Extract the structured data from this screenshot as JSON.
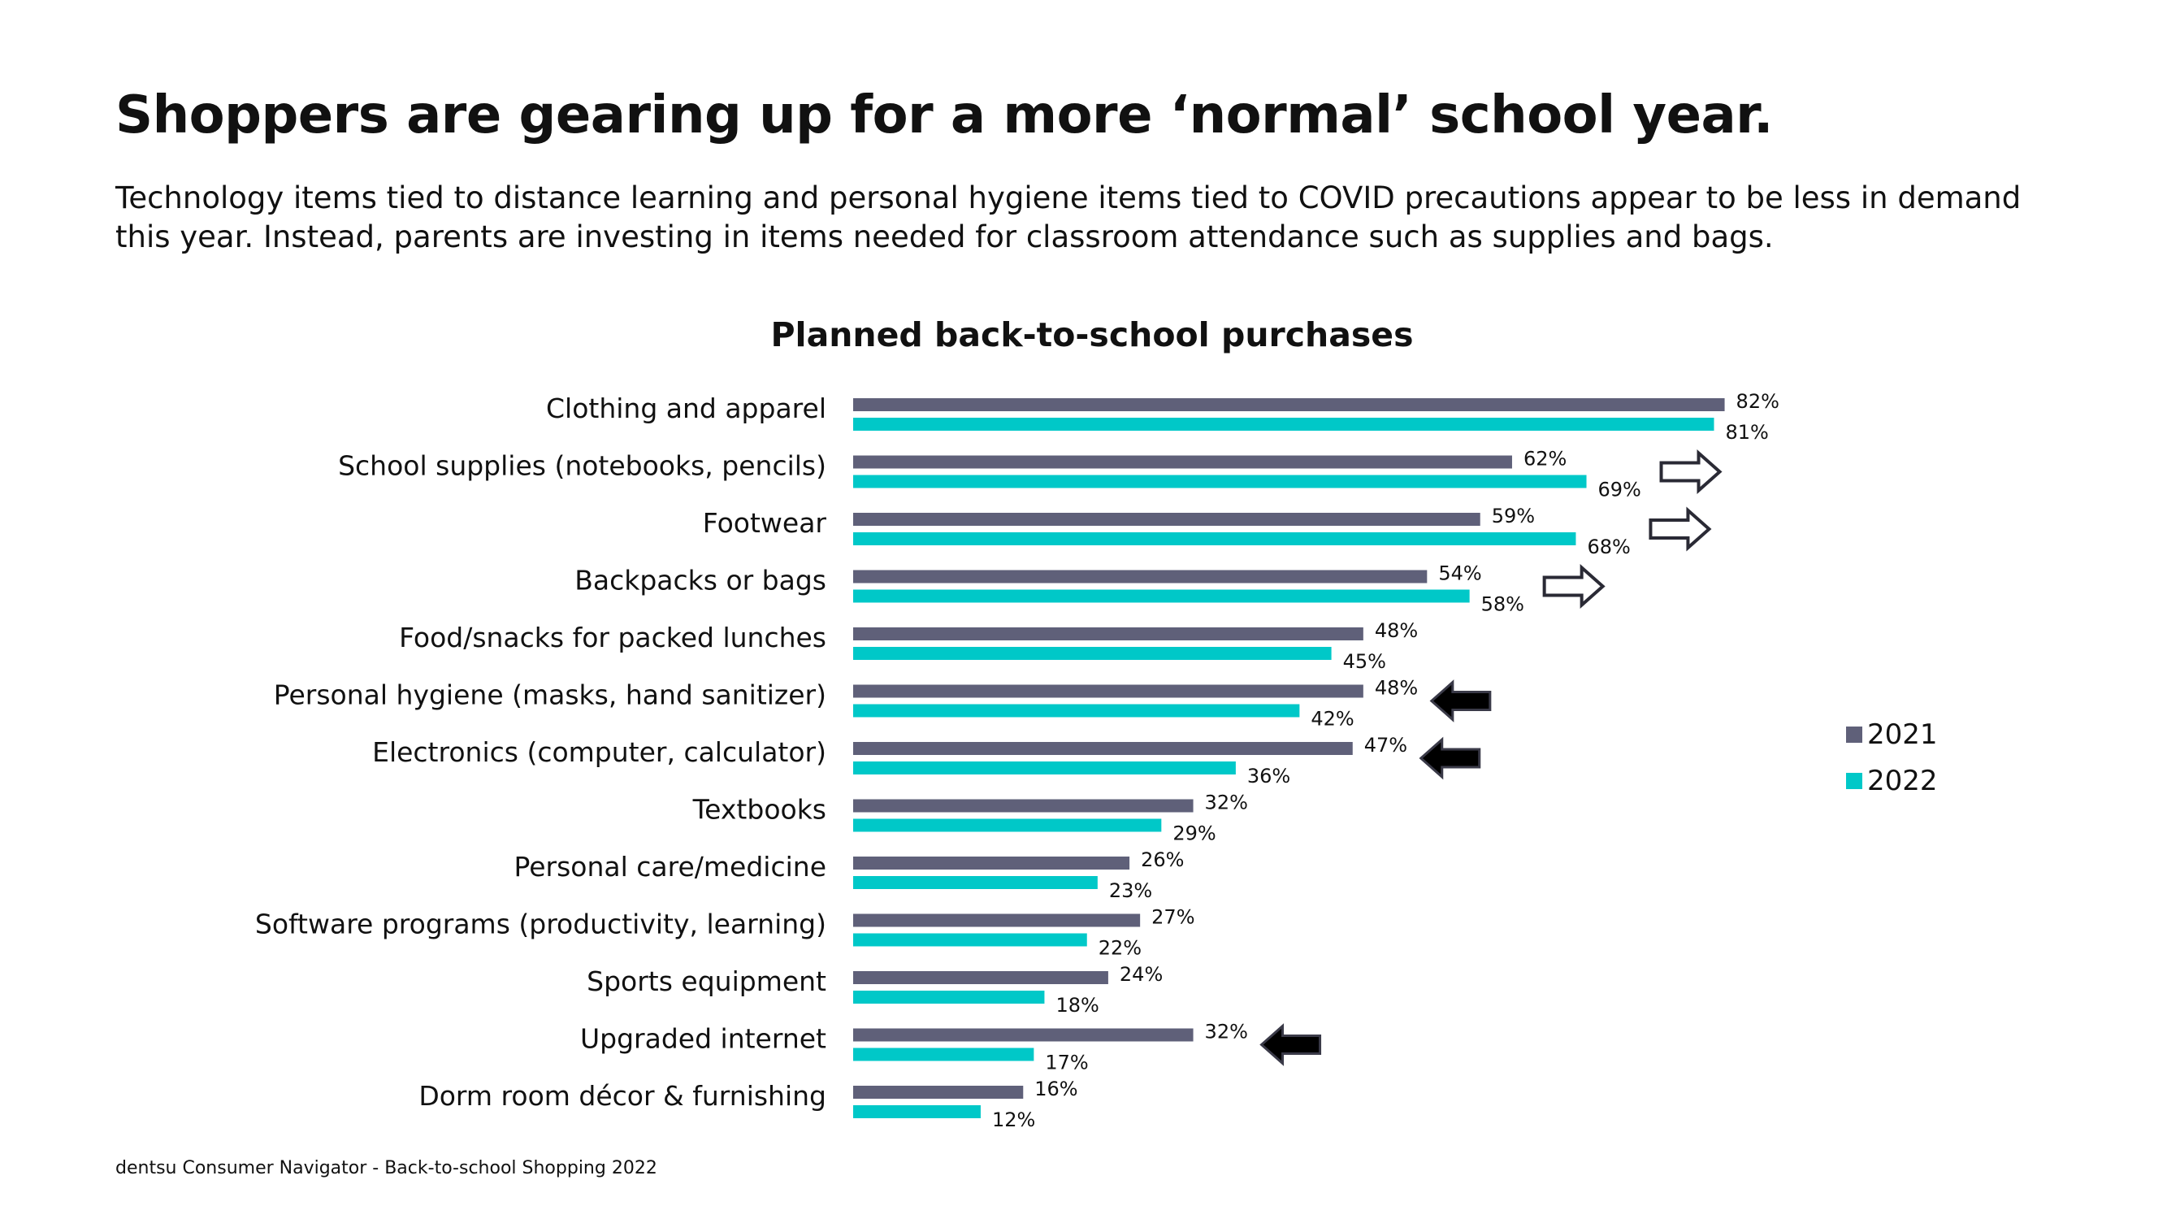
{
  "header": {
    "title": "Shoppers are gearing up for a more ‘normal’ school year.",
    "subtitle": "Technology items tied to distance learning and personal hygiene items tied to COVID precautions appear to be less in demand this year. Instead, parents are investing in items needed for classroom attendance such as supplies and bags."
  },
  "footnote": "dentsu Consumer Navigator -  Back-to-school Shopping 2022",
  "chart_data": {
    "type": "bar",
    "orientation": "horizontal",
    "title": "Planned back-to-school purchases",
    "xlabel": "",
    "ylabel": "",
    "xlim": [
      0,
      100
    ],
    "grid": false,
    "legend_position": "right",
    "categories": [
      "Clothing and apparel",
      "School supplies (notebooks, pencils)",
      "Footwear",
      "Backpacks or bags",
      "Food/snacks for packed lunches",
      "Personal hygiene (masks, hand sanitizer)",
      "Electronics (computer, calculator)",
      "Textbooks",
      "Personal care/medicine",
      "Software programs (productivity, learning)",
      "Sports equipment",
      "Upgraded internet",
      "Dorm room décor & furnishing"
    ],
    "series": [
      {
        "name": "2021",
        "color": "#5f6079",
        "values": [
          82,
          62,
          59,
          54,
          48,
          48,
          47,
          32,
          26,
          27,
          24,
          32,
          16
        ]
      },
      {
        "name": "2022",
        "color": "#00c8c8",
        "values": [
          81,
          69,
          68,
          58,
          45,
          42,
          36,
          29,
          23,
          22,
          18,
          17,
          12
        ]
      }
    ],
    "value_suffix": "%",
    "annotations": [
      {
        "category_index": 1,
        "arrow": "right-hollow",
        "meaning": "increase"
      },
      {
        "category_index": 2,
        "arrow": "right-hollow",
        "meaning": "increase"
      },
      {
        "category_index": 3,
        "arrow": "right-hollow",
        "meaning": "increase"
      },
      {
        "category_index": 5,
        "arrow": "left-filled",
        "meaning": "decrease"
      },
      {
        "category_index": 6,
        "arrow": "left-filled",
        "meaning": "decrease"
      },
      {
        "category_index": 11,
        "arrow": "left-filled",
        "meaning": "decrease"
      }
    ]
  }
}
